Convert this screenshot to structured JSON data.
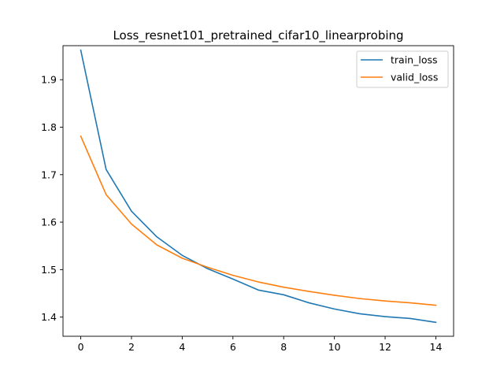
{
  "chart_data": {
    "type": "line",
    "title": "Loss_resnet101_pretrained_cifar10_linearprobing",
    "xlabel": "",
    "ylabel": "",
    "x": [
      0,
      1,
      2,
      3,
      4,
      5,
      6,
      7,
      8,
      9,
      10,
      11,
      12,
      13,
      14
    ],
    "xlim": [
      -0.7,
      14.7
    ],
    "ylim": [
      1.3596,
      1.9717
    ],
    "xticks": [
      0,
      2,
      4,
      6,
      8,
      10,
      12,
      14
    ],
    "xtick_labels": [
      "0",
      "2",
      "4",
      "6",
      "8",
      "10",
      "12",
      "14"
    ],
    "yticks": [
      1.4,
      1.5,
      1.6,
      1.7,
      1.8,
      1.9
    ],
    "ytick_labels": [
      "1.4",
      "1.5",
      "1.6",
      "1.7",
      "1.8",
      "1.9"
    ],
    "grid": false,
    "legend_position": "upper right",
    "series": [
      {
        "name": "train_loss",
        "color": "#1f77b4",
        "values": [
          1.9622,
          1.711,
          1.623,
          1.569,
          1.53,
          1.502,
          1.48,
          1.457,
          1.447,
          1.43,
          1.417,
          1.407,
          1.401,
          1.397,
          1.389
        ]
      },
      {
        "name": "valid_loss",
        "color": "#ff7f0e",
        "values": [
          1.781,
          1.658,
          1.596,
          1.552,
          1.524,
          1.505,
          1.488,
          1.474,
          1.463,
          1.454,
          1.446,
          1.439,
          1.434,
          1.43,
          1.425
        ]
      }
    ]
  }
}
